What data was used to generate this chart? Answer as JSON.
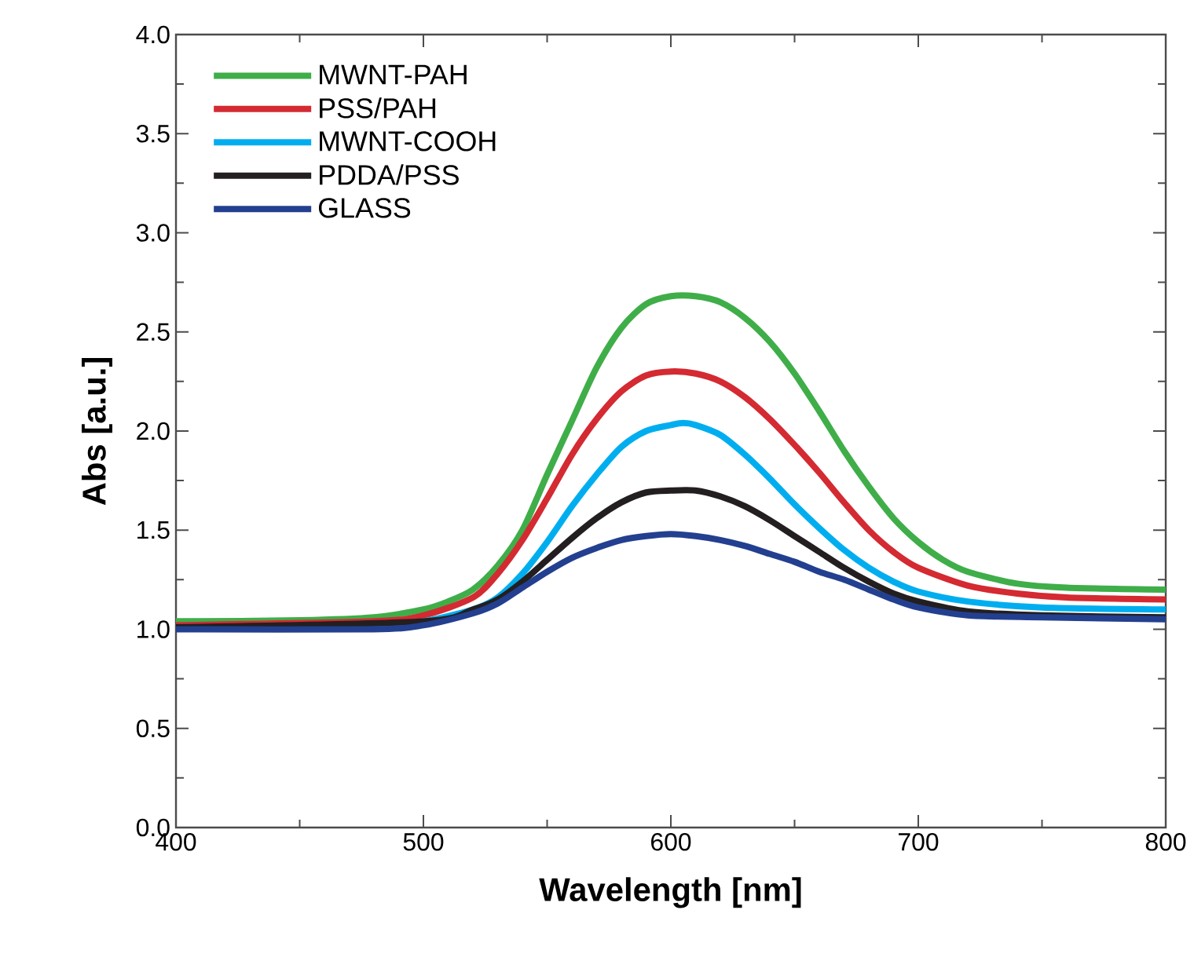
{
  "chart_data": {
    "type": "line",
    "xlabel": "Wavelength [nm]",
    "ylabel": "Abs [a.u.]",
    "xlim": [
      400,
      800
    ],
    "ylim": [
      0,
      4
    ],
    "xticks": [
      400,
      500,
      600,
      700,
      800
    ],
    "yticks": [
      {
        "value": 0,
        "label": "0.0"
      },
      {
        "value": 0.5,
        "label": "0.5"
      },
      {
        "value": 1,
        "label": "1.0"
      },
      {
        "value": 1.5,
        "label": "1.5"
      },
      {
        "value": 2,
        "label": "2.0"
      },
      {
        "value": 2.5,
        "label": "2.5"
      },
      {
        "value": 3,
        "label": "3.0"
      },
      {
        "value": 3.5,
        "label": "3.5"
      },
      {
        "value": 4,
        "label": "4.0"
      }
    ],
    "grid": false,
    "legend": "top left",
    "marker": "none",
    "line_style": "solid",
    "series": [
      {
        "name": "MWNT-PAH",
        "color": "#3fae49",
        "x": [
          400,
          450,
          480,
          500,
          510,
          520,
          530,
          540,
          550,
          560,
          570,
          580,
          590,
          600,
          610,
          620,
          630,
          640,
          650,
          660,
          670,
          680,
          690,
          700,
          710,
          720,
          740,
          760,
          800
        ],
        "values": [
          1.04,
          1.045,
          1.06,
          1.1,
          1.14,
          1.2,
          1.32,
          1.5,
          1.78,
          2.05,
          2.32,
          2.52,
          2.64,
          2.68,
          2.68,
          2.65,
          2.57,
          2.45,
          2.29,
          2.1,
          1.9,
          1.72,
          1.56,
          1.44,
          1.35,
          1.29,
          1.23,
          1.21,
          1.2
        ]
      },
      {
        "name": "PSS/PAH",
        "color": "#d42a32",
        "x": [
          400,
          480,
          500,
          520,
          530,
          540,
          550,
          560,
          570,
          580,
          590,
          600,
          610,
          620,
          630,
          640,
          650,
          660,
          670,
          680,
          690,
          700,
          720,
          740,
          760,
          800
        ],
        "values": [
          1.02,
          1.04,
          1.07,
          1.16,
          1.28,
          1.45,
          1.66,
          1.88,
          2.06,
          2.2,
          2.28,
          2.3,
          2.29,
          2.25,
          2.17,
          2.06,
          1.93,
          1.79,
          1.64,
          1.5,
          1.39,
          1.31,
          1.22,
          1.18,
          1.16,
          1.15
        ]
      },
      {
        "name": "MWNT-COOH",
        "color": "#00aeef",
        "x": [
          400,
          480,
          500,
          520,
          530,
          540,
          550,
          560,
          570,
          580,
          590,
          600,
          605,
          610,
          620,
          630,
          640,
          650,
          660,
          670,
          680,
          690,
          700,
          720,
          750,
          800
        ],
        "values": [
          1.01,
          1.02,
          1.04,
          1.1,
          1.16,
          1.28,
          1.44,
          1.62,
          1.78,
          1.92,
          2.0,
          2.03,
          2.04,
          2.03,
          1.98,
          1.88,
          1.76,
          1.63,
          1.51,
          1.4,
          1.31,
          1.24,
          1.19,
          1.14,
          1.11,
          1.1
        ]
      },
      {
        "name": "PDDA/PSS",
        "color": "#231f20",
        "x": [
          400,
          500,
          520,
          530,
          540,
          550,
          560,
          570,
          580,
          590,
          600,
          610,
          620,
          630,
          640,
          650,
          660,
          670,
          680,
          690,
          700,
          720,
          750,
          800
        ],
        "values": [
          1.01,
          1.04,
          1.1,
          1.15,
          1.24,
          1.35,
          1.46,
          1.56,
          1.64,
          1.69,
          1.7,
          1.7,
          1.67,
          1.62,
          1.55,
          1.47,
          1.39,
          1.31,
          1.24,
          1.18,
          1.14,
          1.09,
          1.07,
          1.06
        ]
      },
      {
        "name": "GLASS",
        "color": "#233f8f",
        "x": [
          400,
          480,
          500,
          520,
          530,
          540,
          550,
          560,
          570,
          580,
          590,
          600,
          610,
          620,
          630,
          640,
          650,
          660,
          670,
          680,
          690,
          700,
          720,
          750,
          800
        ],
        "values": [
          1.0,
          1.0,
          1.02,
          1.08,
          1.13,
          1.21,
          1.29,
          1.36,
          1.41,
          1.45,
          1.47,
          1.48,
          1.47,
          1.45,
          1.42,
          1.38,
          1.34,
          1.29,
          1.25,
          1.2,
          1.15,
          1.11,
          1.07,
          1.06,
          1.05
        ]
      }
    ]
  }
}
